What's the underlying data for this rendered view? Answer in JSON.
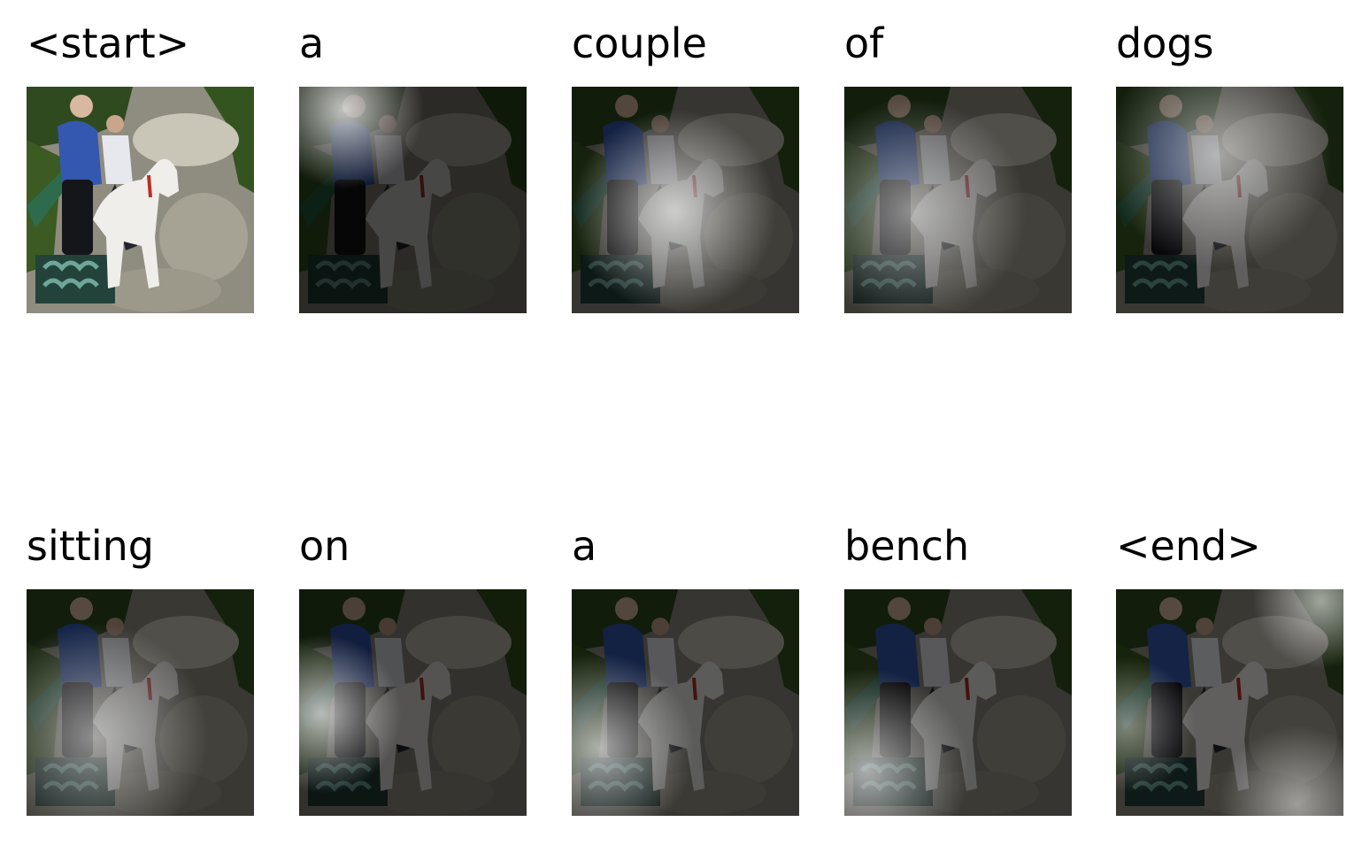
{
  "caption_tokens": [
    {
      "word": "<start>",
      "attention": "none"
    },
    {
      "word": "a",
      "attention": "top-left"
    },
    {
      "word": "couple",
      "attention": "center-dog"
    },
    {
      "word": "of",
      "attention": "center-left"
    },
    {
      "word": "dogs",
      "attention": "upper-center"
    },
    {
      "word": "sitting",
      "attention": "left-center"
    },
    {
      "word": "on",
      "attention": "left-bench"
    },
    {
      "word": "a",
      "attention": "left-bench-lower"
    },
    {
      "word": "bench",
      "attention": "left-lower"
    },
    {
      "word": "<end>",
      "attention": "edges"
    }
  ]
}
